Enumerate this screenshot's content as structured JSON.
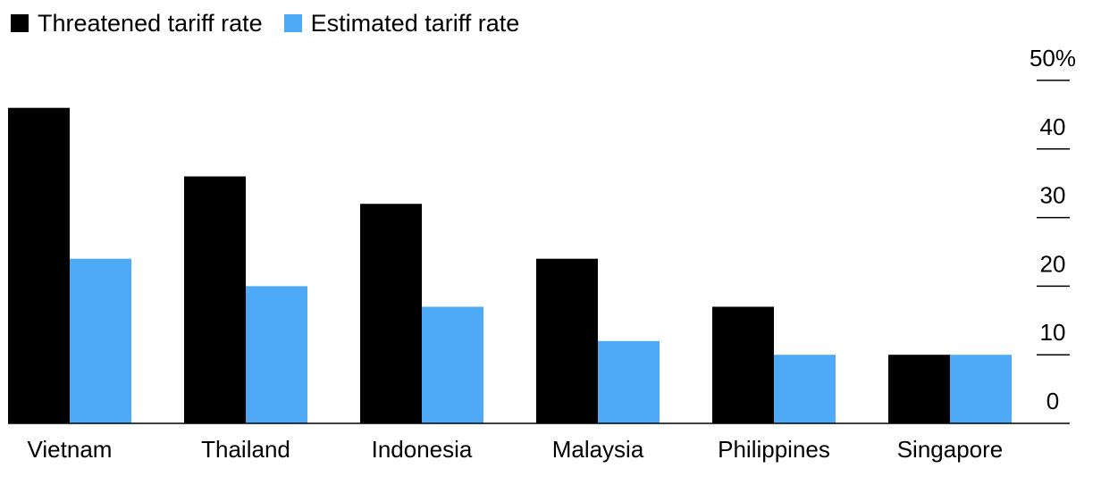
{
  "chart_data": {
    "type": "bar",
    "categories": [
      "Vietnam",
      "Thailand",
      "Indonesia",
      "Malaysia",
      "Philippines",
      "Singapore"
    ],
    "series": [
      {
        "name": "Threatened tariff rate",
        "values": [
          46,
          36,
          32,
          24,
          17,
          10
        ],
        "color": "#000000"
      },
      {
        "name": "Estimated tariff rate",
        "values": [
          24,
          20,
          17,
          12,
          10,
          10
        ],
        "color": "#4eaaf6"
      }
    ],
    "ylim": [
      0,
      50
    ],
    "yticks": [
      0,
      10,
      20,
      30,
      40,
      50
    ],
    "ytick_labels": [
      "0",
      "10",
      "20",
      "30",
      "40",
      "50%"
    ],
    "y_axis_side": "right",
    "grid": false,
    "legend_position": "top-left",
    "title": "",
    "xlabel": "",
    "ylabel": ""
  }
}
